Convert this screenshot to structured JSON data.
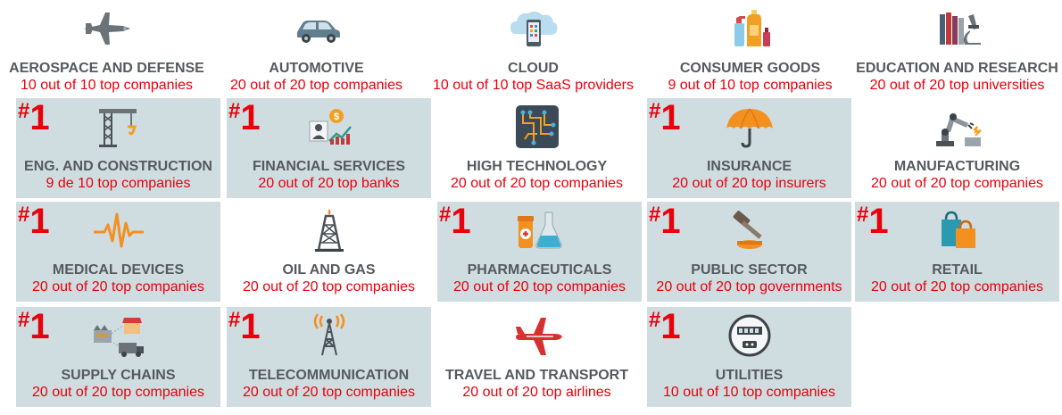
{
  "rank_hash": "#",
  "rank_num": "1",
  "tiles": [
    {
      "name": "AEROSPACE AND DEFENSE",
      "stat": "10 out of 10 top companies",
      "icon": "fighter-jet-icon",
      "rank": false
    },
    {
      "name": "AUTOMOTIVE",
      "stat": "20 out of 20 top companies",
      "icon": "car-icon",
      "rank": false
    },
    {
      "name": "CLOUD",
      "stat": "10 out of 10 top SaaS providers",
      "icon": "cloud-phone-icon",
      "rank": false
    },
    {
      "name": "CONSUMER GOODS",
      "stat": "9 out of 10 top companies",
      "icon": "bottles-icon",
      "rank": false
    },
    {
      "name": "EDUCATION AND RESEARCH",
      "stat": "20 out of 20 top universities",
      "icon": "books-microscope-icon",
      "rank": false
    },
    {
      "name": "ENG. AND CONSTRUCTION",
      "stat": "9 de 10 top companies",
      "icon": "crane-icon",
      "rank": true
    },
    {
      "name": "FINANCIAL SERVICES",
      "stat": "20 out of 20 top banks",
      "icon": "finance-icon",
      "rank": true
    },
    {
      "name": "HIGH TECHNOLOGY",
      "stat": "20 out of 20 top companies",
      "icon": "circuit-icon",
      "rank": false
    },
    {
      "name": "INSURANCE",
      "stat": "20 out of 20 top insurers",
      "icon": "umbrella-icon",
      "rank": true
    },
    {
      "name": "MANUFACTURING",
      "stat": "20 out of 20 top companies",
      "icon": "robot-arm-icon",
      "rank": false
    },
    {
      "name": "MEDICAL DEVICES",
      "stat": "20 out of 20 top companies",
      "icon": "heartbeat-icon",
      "rank": true
    },
    {
      "name": "OIL AND GAS",
      "stat": "20 out of 20 top companies",
      "icon": "oil-derrick-icon",
      "rank": false
    },
    {
      "name": "PHARMACEUTICALS",
      "stat": "20 out of 20 top companies",
      "icon": "pharma-icon",
      "rank": true
    },
    {
      "name": "PUBLIC SECTOR",
      "stat": "20 out of 20 top governments",
      "icon": "gavel-icon",
      "rank": true
    },
    {
      "name": "RETAIL",
      "stat": "20 out of 20 top companies",
      "icon": "shopping-bags-icon",
      "rank": true
    },
    {
      "name": "SUPPLY CHAINS",
      "stat": "20 out of 20 top companies",
      "icon": "supply-chain-icon",
      "rank": true
    },
    {
      "name": "TELECOMMUNICATION",
      "stat": "20 out of 20 top companies",
      "icon": "antenna-tower-icon",
      "rank": true
    },
    {
      "name": "TRAVEL AND TRANSPORT",
      "stat": "20 out of 20 top airlines",
      "icon": "airplane-icon",
      "rank": false
    },
    {
      "name": "UTILITIES",
      "stat": "10 out of 10 top companies",
      "icon": "meter-icon",
      "rank": true
    }
  ],
  "colors": {
    "highlight_bg": "#cfdde1",
    "accent_red": "#e8000b",
    "label_gray": "#555a5e"
  }
}
